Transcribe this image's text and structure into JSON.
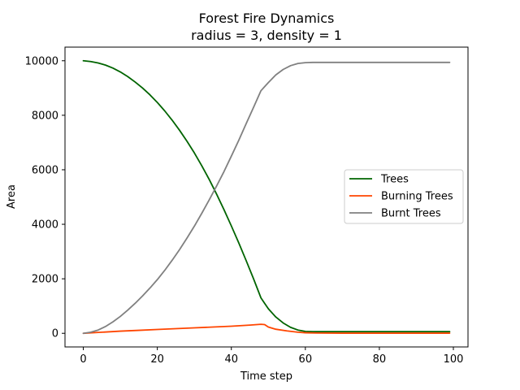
{
  "chart_data": {
    "type": "line",
    "title": "Forest Fire Dynamics",
    "subtitle": "radius = 3, density = 1",
    "xlabel": "Time step",
    "ylabel": "Area",
    "xlim": [
      -4.95,
      103.95
    ],
    "ylim": [
      -500,
      10500
    ],
    "xticks": [
      0,
      20,
      40,
      60,
      80,
      100
    ],
    "yticks": [
      0,
      2000,
      4000,
      6000,
      8000,
      10000
    ],
    "grid": false,
    "legend_position": "center-right",
    "series": [
      {
        "name": "Trees",
        "color": "#006400",
        "x": [
          0,
          2,
          4,
          6,
          8,
          10,
          12,
          14,
          16,
          18,
          20,
          22,
          24,
          26,
          28,
          30,
          32,
          34,
          36,
          38,
          40,
          42,
          44,
          46,
          48,
          49,
          50,
          52,
          54,
          56,
          58,
          60,
          62,
          64,
          70,
          80,
          90,
          99
        ],
        "y": [
          10000,
          9970,
          9920,
          9840,
          9730,
          9590,
          9420,
          9220,
          9000,
          8750,
          8470,
          8160,
          7820,
          7450,
          7050,
          6620,
          6150,
          5650,
          5110,
          4540,
          3940,
          3320,
          2670,
          2000,
          1300,
          1100,
          900,
          600,
          380,
          220,
          120,
          70,
          60,
          60,
          60,
          60,
          60,
          60
        ]
      },
      {
        "name": "Burning Trees",
        "color": "#ff4500",
        "x": [
          0,
          5,
          10,
          15,
          20,
          25,
          30,
          35,
          40,
          45,
          48,
          49,
          50,
          52,
          55,
          58,
          60,
          63,
          70,
          80,
          99
        ],
        "y": [
          0,
          40,
          80,
          110,
          140,
          170,
          200,
          230,
          260,
          300,
          330,
          320,
          230,
          150,
          90,
          40,
          20,
          10,
          5,
          5,
          5
        ]
      },
      {
        "name": "Burnt Trees",
        "color": "#808080",
        "x": [
          0,
          2,
          4,
          6,
          8,
          10,
          12,
          14,
          16,
          18,
          20,
          22,
          24,
          26,
          28,
          30,
          32,
          34,
          36,
          38,
          40,
          42,
          44,
          46,
          48,
          49,
          50,
          52,
          54,
          56,
          58,
          60,
          62,
          64,
          70,
          80,
          90,
          99
        ],
        "y": [
          0,
          40,
          120,
          250,
          420,
          620,
          850,
          1100,
          1370,
          1660,
          1970,
          2310,
          2680,
          3070,
          3490,
          3930,
          4400,
          4890,
          5400,
          5930,
          6500,
          7080,
          7690,
          8290,
          8900,
          9050,
          9200,
          9480,
          9680,
          9820,
          9900,
          9930,
          9940,
          9940,
          9940,
          9940,
          9940,
          9940
        ]
      }
    ]
  }
}
